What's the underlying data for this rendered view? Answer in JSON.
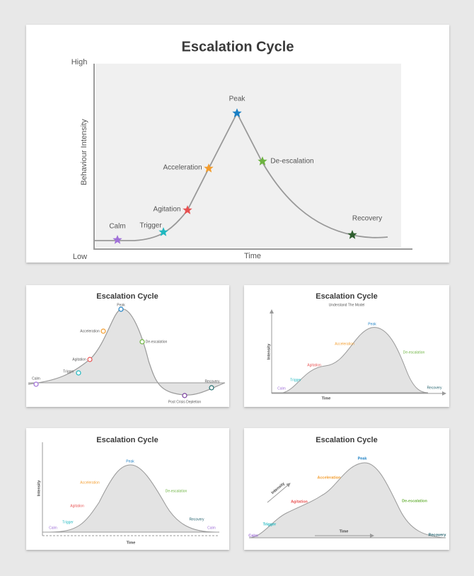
{
  "slides": [
    {
      "title": "Escalation Cycle",
      "y_axis": {
        "title": "Behaviour Intensity",
        "high": "High",
        "low": "Low"
      },
      "x_axis": "Time",
      "stages": [
        "Calm",
        "Trigger",
        "Agitation",
        "Acceleration",
        "Peak",
        "De-escalation",
        "Recovery"
      ]
    },
    {
      "title": "Escalation Cycle",
      "stages": [
        "Calm",
        "Trigger",
        "Agitation",
        "Acceleration",
        "Peak",
        "De-escalation",
        "Post Crisis Depletion",
        "Recovery"
      ]
    },
    {
      "title": "Escalation Cycle",
      "subtitle": "Understand The Model",
      "y_axis": "Intensity",
      "x_axis": "Time",
      "stages": [
        "Calm",
        "Trigger",
        "Agitation",
        "Acceleration",
        "Peak",
        "De-escalation",
        "Recovery"
      ]
    },
    {
      "title": "Escalation Cycle",
      "y_axis": "Intensity",
      "x_axis": "Time",
      "stages": [
        "Calm",
        "Trigger",
        "Agitation",
        "Acceleration",
        "Peak",
        "De-escalation",
        "Recovery",
        "Calm"
      ]
    },
    {
      "title": "Escalation Cycle",
      "y_axis": "Intensity",
      "x_axis": "Time",
      "stages": [
        "Calm",
        "Trigger",
        "Agitation",
        "Acceleration",
        "Peak",
        "De-escalation",
        "Recovery"
      ]
    }
  ]
}
